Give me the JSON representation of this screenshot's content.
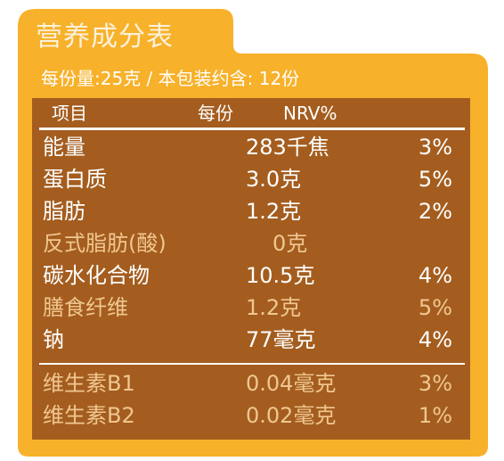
{
  "title": "营养成分表",
  "serving_info": "每份量:25克 / 本包装约含: 12份",
  "header": {
    "item": "项目",
    "per_serving": "每份",
    "nrv": "NRV%"
  },
  "rows": [
    {
      "name": "能量",
      "value": "283千焦",
      "nrv": "3%"
    },
    {
      "name": "蛋白质",
      "value": "3.0克",
      "nrv": "5%"
    },
    {
      "name": "脂肪",
      "value": "1.2克",
      "nrv": "2%"
    },
    {
      "name": "反式脂肪(酸)",
      "value": "0克",
      "nrv": ""
    },
    {
      "name": "碳水化合物",
      "value": "10.5克",
      "nrv": "4%"
    },
    {
      "name": "膳食纤维",
      "value": "1.2克",
      "nrv": "5%"
    },
    {
      "name": "钠",
      "value": "77毫克",
      "nrv": "4%"
    },
    {
      "name": "维生素B1",
      "value": "0.04毫克",
      "nrv": "3%"
    },
    {
      "name": "维生素B2",
      "value": "0.02毫克",
      "nrv": "1%"
    }
  ],
  "colors": {
    "frame": "#f7b12a",
    "panel": "#a45d1f",
    "text_primary": "#ffffff",
    "text_secondary": "#efc790"
  }
}
